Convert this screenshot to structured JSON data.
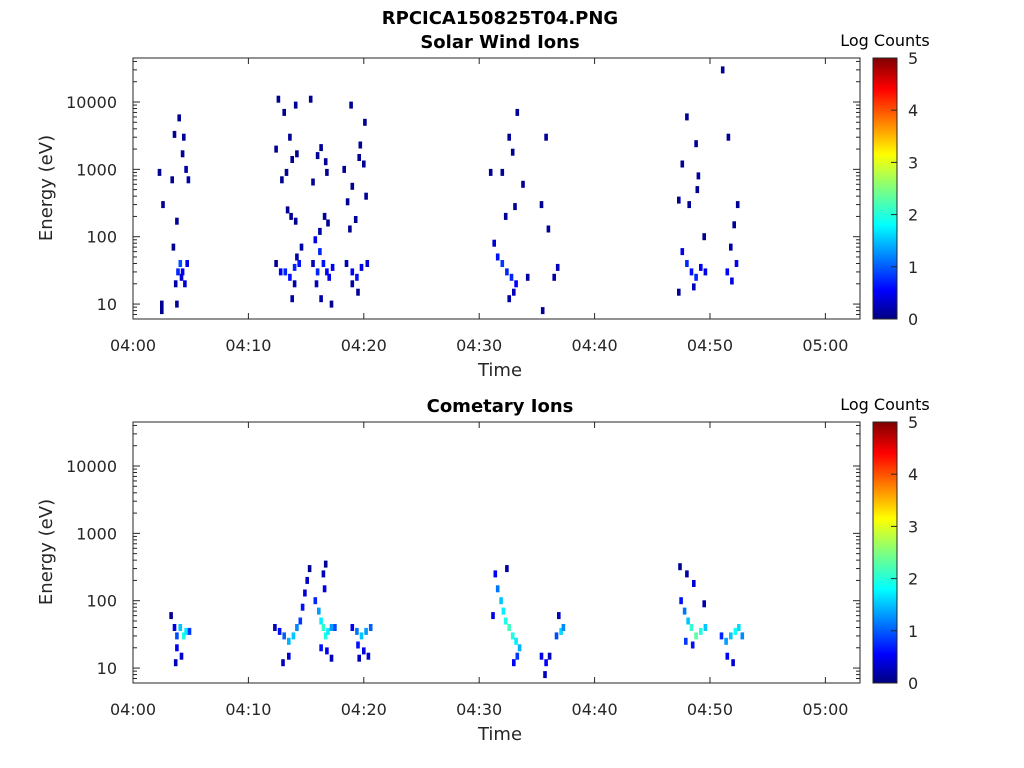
{
  "figure_title": "RPCICA150825T04.PNG",
  "chart_data": [
    {
      "type": "heatmap",
      "title": "Solar Wind Ions",
      "xlabel": "Time",
      "ylabel": "Energy (eV)",
      "x_ticks": [
        "04:00",
        "04:10",
        "04:20",
        "04:30",
        "04:40",
        "04:50",
        "05:00"
      ],
      "x_range_minutes": [
        0,
        63
      ],
      "y_scale": "log",
      "y_ticks": [
        "10",
        "100",
        "1000",
        "10000"
      ],
      "y_range": [
        6,
        45000
      ],
      "colorbar": {
        "label": "Log Counts",
        "ticks": [
          "0",
          "1",
          "2",
          "3",
          "4",
          "5"
        ],
        "range": [
          0,
          5
        ],
        "colormap": "jet"
      },
      "cells": [
        [
          2.5,
          10,
          0.1
        ],
        [
          2.5,
          8,
          0.1
        ],
        [
          3.7,
          20,
          0.2
        ],
        [
          3.9,
          30,
          0.8
        ],
        [
          4.1,
          40,
          1.0
        ],
        [
          4.3,
          30,
          0.6
        ],
        [
          4.5,
          20,
          0.4
        ],
        [
          4.7,
          40,
          0.5
        ],
        [
          3.5,
          70,
          0.1
        ],
        [
          3.8,
          170,
          0.1
        ],
        [
          4.0,
          5800,
          0.1
        ],
        [
          3.6,
          3300,
          0.1
        ],
        [
          4.4,
          3000,
          0.1
        ],
        [
          4.3,
          1700,
          0.1
        ],
        [
          4.6,
          1000,
          0.2
        ],
        [
          4.8,
          700,
          0.2
        ],
        [
          2.3,
          900,
          0.1
        ],
        [
          3.4,
          700,
          0.1
        ],
        [
          2.6,
          300,
          0.1
        ],
        [
          3.8,
          10,
          0.1
        ],
        [
          4.2,
          25,
          0.4
        ],
        [
          12.4,
          40,
          0.1
        ],
        [
          12.8,
          30,
          0.6
        ],
        [
          13.2,
          30,
          0.8
        ],
        [
          13.6,
          25,
          0.7
        ],
        [
          14.0,
          35,
          0.8
        ],
        [
          14.4,
          40,
          0.7
        ],
        [
          14.0,
          20,
          0.2
        ],
        [
          13.8,
          12,
          0.2
        ],
        [
          14.2,
          50,
          0.2
        ],
        [
          14.6,
          70,
          0.2
        ],
        [
          13.4,
          250,
          0.1
        ],
        [
          13.7,
          200,
          0.1
        ],
        [
          14.1,
          170,
          0.1
        ],
        [
          12.9,
          700,
          0.1
        ],
        [
          13.3,
          900,
          0.1
        ],
        [
          13.8,
          1400,
          0.1
        ],
        [
          14.2,
          1700,
          0.1
        ],
        [
          12.4,
          2000,
          0.1
        ],
        [
          12.6,
          11000,
          0.1
        ],
        [
          13.1,
          7000,
          0.1
        ],
        [
          14.1,
          9000,
          0.1
        ],
        [
          13.6,
          3000,
          0.1
        ],
        [
          15.8,
          90,
          0.5
        ],
        [
          16.2,
          60,
          0.8
        ],
        [
          16.5,
          40,
          0.7
        ],
        [
          16.0,
          30,
          0.8
        ],
        [
          16.8,
          30,
          0.6
        ],
        [
          17.0,
          25,
          0.5
        ],
        [
          17.3,
          35,
          0.6
        ],
        [
          15.9,
          20,
          0.3
        ],
        [
          16.3,
          12,
          0.2
        ],
        [
          17.2,
          10,
          0.1
        ],
        [
          15.6,
          40,
          0.3
        ],
        [
          16.2,
          120,
          0.2
        ],
        [
          16.6,
          200,
          0.1
        ],
        [
          16.9,
          160,
          0.1
        ],
        [
          15.4,
          11000,
          0.1
        ],
        [
          16.0,
          1600,
          0.1
        ],
        [
          16.3,
          2100,
          0.1
        ],
        [
          16.7,
          1300,
          0.1
        ],
        [
          15.6,
          650,
          0.1
        ],
        [
          16.8,
          900,
          0.1
        ],
        [
          18.5,
          40,
          0.3
        ],
        [
          19.0,
          30,
          0.6
        ],
        [
          19.4,
          25,
          0.7
        ],
        [
          19.8,
          35,
          0.5
        ],
        [
          20.3,
          40,
          0.4
        ],
        [
          19.0,
          20,
          0.2
        ],
        [
          19.5,
          15,
          0.1
        ],
        [
          18.8,
          130,
          0.1
        ],
        [
          19.3,
          180,
          0.1
        ],
        [
          18.6,
          330,
          0.1
        ],
        [
          19.0,
          560,
          0.1
        ],
        [
          18.9,
          9000,
          0.1
        ],
        [
          20.1,
          5000,
          0.1
        ],
        [
          19.7,
          2300,
          0.1
        ],
        [
          20.2,
          400,
          0.1
        ],
        [
          19.6,
          1500,
          0.1
        ],
        [
          18.3,
          1000,
          0.1
        ],
        [
          20.0,
          1200,
          0.1
        ],
        [
          31.3,
          80,
          0.4
        ],
        [
          31.6,
          50,
          0.7
        ],
        [
          32.0,
          40,
          0.9
        ],
        [
          32.4,
          30,
          0.8
        ],
        [
          32.8,
          25,
          0.8
        ],
        [
          33.2,
          20,
          0.6
        ],
        [
          32.6,
          12,
          0.2
        ],
        [
          33.0,
          15,
          0.3
        ],
        [
          32.3,
          200,
          0.1
        ],
        [
          33.1,
          280,
          0.1
        ],
        [
          32.0,
          900,
          0.1
        ],
        [
          32.6,
          3000,
          0.1
        ],
        [
          33.3,
          7000,
          0.1
        ],
        [
          33.8,
          600,
          0.1
        ],
        [
          31.0,
          900,
          0.1
        ],
        [
          32.9,
          1800,
          0.1
        ],
        [
          36.0,
          130,
          0.1
        ],
        [
          35.4,
          300,
          0.1
        ],
        [
          36.8,
          35,
          0.3
        ],
        [
          36.5,
          25,
          0.2
        ],
        [
          35.5,
          8,
          0.1
        ],
        [
          34.2,
          25,
          0.2
        ],
        [
          35.8,
          3000,
          0.1
        ],
        [
          47.6,
          60,
          0.5
        ],
        [
          48.0,
          40,
          0.8
        ],
        [
          48.4,
          30,
          0.7
        ],
        [
          48.8,
          25,
          0.8
        ],
        [
          49.2,
          35,
          0.6
        ],
        [
          49.6,
          30,
          0.5
        ],
        [
          48.6,
          18,
          0.3
        ],
        [
          47.3,
          15,
          0.1
        ],
        [
          49.5,
          100,
          0.1
        ],
        [
          48.2,
          300,
          0.1
        ],
        [
          48.9,
          500,
          0.1
        ],
        [
          48.0,
          6000,
          0.1
        ],
        [
          48.8,
          2400,
          0.1
        ],
        [
          47.6,
          1200,
          0.1
        ],
        [
          49.0,
          800,
          0.1
        ],
        [
          51.5,
          30,
          0.6
        ],
        [
          51.9,
          22,
          0.5
        ],
        [
          52.3,
          40,
          0.6
        ],
        [
          51.8,
          70,
          0.2
        ],
        [
          51.1,
          30000,
          0.1
        ],
        [
          51.6,
          3000,
          0.1
        ],
        [
          52.4,
          300,
          0.1
        ],
        [
          52.1,
          150,
          0.1
        ],
        [
          47.3,
          350,
          0.1
        ]
      ]
    },
    {
      "type": "heatmap",
      "title": "Cometary Ions",
      "xlabel": "Time",
      "ylabel": "Energy (eV)",
      "x_ticks": [
        "04:00",
        "04:10",
        "04:20",
        "04:30",
        "04:40",
        "04:50",
        "05:00"
      ],
      "x_range_minutes": [
        0,
        63
      ],
      "y_scale": "log",
      "y_ticks": [
        "10",
        "100",
        "1000",
        "10000"
      ],
      "y_range": [
        6,
        45000
      ],
      "colorbar": {
        "label": "Log Counts",
        "ticks": [
          "0",
          "1",
          "2",
          "3",
          "4",
          "5"
        ],
        "range": [
          0,
          5
        ],
        "colormap": "jet"
      },
      "cells": [
        [
          3.3,
          60,
          0.1
        ],
        [
          3.6,
          40,
          0.5
        ],
        [
          3.8,
          30,
          1.0
        ],
        [
          4.1,
          40,
          1.6
        ],
        [
          4.4,
          30,
          2.0
        ],
        [
          4.6,
          35,
          1.8
        ],
        [
          4.9,
          35,
          0.9
        ],
        [
          3.8,
          20,
          0.6
        ],
        [
          4.2,
          15,
          0.4
        ],
        [
          3.7,
          12,
          0.3
        ],
        [
          12.3,
          40,
          0.3
        ],
        [
          12.7,
          35,
          0.7
        ],
        [
          13.1,
          30,
          1.1
        ],
        [
          13.5,
          25,
          1.5
        ],
        [
          13.9,
          30,
          1.6
        ],
        [
          14.2,
          40,
          1.3
        ],
        [
          14.5,
          50,
          0.9
        ],
        [
          14.7,
          80,
          0.7
        ],
        [
          14.9,
          130,
          0.4
        ],
        [
          15.1,
          200,
          0.3
        ],
        [
          15.3,
          300,
          0.1
        ],
        [
          13.5,
          15,
          0.4
        ],
        [
          13.0,
          12,
          0.3
        ],
        [
          15.8,
          100,
          0.8
        ],
        [
          16.1,
          70,
          1.4
        ],
        [
          16.3,
          50,
          1.8
        ],
        [
          16.5,
          40,
          2.1
        ],
        [
          16.7,
          30,
          2.0
        ],
        [
          16.9,
          35,
          1.8
        ],
        [
          17.2,
          40,
          1.4
        ],
        [
          17.5,
          40,
          1.0
        ],
        [
          16.6,
          150,
          0.5
        ],
        [
          16.5,
          250,
          0.3
        ],
        [
          16.7,
          350,
          0.1
        ],
        [
          16.3,
          20,
          0.7
        ],
        [
          16.8,
          18,
          0.5
        ],
        [
          17.2,
          14,
          0.3
        ],
        [
          19.0,
          40,
          0.6
        ],
        [
          19.4,
          35,
          1.2
        ],
        [
          19.8,
          30,
          1.6
        ],
        [
          20.2,
          35,
          1.4
        ],
        [
          20.6,
          40,
          1.1
        ],
        [
          19.5,
          22,
          0.7
        ],
        [
          20.0,
          18,
          0.5
        ],
        [
          20.4,
          15,
          0.4
        ],
        [
          19.6,
          14,
          0.3
        ],
        [
          31.4,
          250,
          0.6
        ],
        [
          31.6,
          150,
          1.2
        ],
        [
          31.9,
          100,
          1.6
        ],
        [
          32.1,
          70,
          1.8
        ],
        [
          32.3,
          50,
          2.0
        ],
        [
          32.6,
          40,
          2.2
        ],
        [
          32.9,
          30,
          2.0
        ],
        [
          33.2,
          25,
          1.8
        ],
        [
          33.5,
          20,
          1.5
        ],
        [
          32.4,
          300,
          0.2
        ],
        [
          31.2,
          60,
          0.5
        ],
        [
          33.3,
          15,
          0.9
        ],
        [
          33.0,
          12,
          0.6
        ],
        [
          35.4,
          15,
          0.5
        ],
        [
          35.8,
          12,
          0.6
        ],
        [
          36.1,
          15,
          0.3
        ],
        [
          36.7,
          30,
          1.0
        ],
        [
          37.1,
          35,
          1.7
        ],
        [
          37.3,
          40,
          1.3
        ],
        [
          36.9,
          60,
          0.3
        ],
        [
          35.7,
          8,
          0.3
        ],
        [
          47.5,
          100,
          0.7
        ],
        [
          47.8,
          70,
          1.2
        ],
        [
          48.1,
          50,
          1.6
        ],
        [
          48.4,
          40,
          2.1
        ],
        [
          48.8,
          30,
          2.3
        ],
        [
          49.2,
          35,
          2.0
        ],
        [
          49.6,
          40,
          1.6
        ],
        [
          47.9,
          25,
          0.9
        ],
        [
          48.5,
          22,
          0.7
        ],
        [
          48.6,
          180,
          0.4
        ],
        [
          48.0,
          250,
          0.2
        ],
        [
          47.4,
          320,
          0.1
        ],
        [
          49.5,
          90,
          0.2
        ],
        [
          51.0,
          30,
          0.8
        ],
        [
          51.4,
          25,
          1.4
        ],
        [
          51.8,
          30,
          1.6
        ],
        [
          52.2,
          35,
          1.9
        ],
        [
          52.5,
          40,
          1.7
        ],
        [
          52.8,
          30,
          1.3
        ],
        [
          51.5,
          15,
          0.6
        ],
        [
          52.0,
          12,
          0.4
        ]
      ]
    }
  ]
}
